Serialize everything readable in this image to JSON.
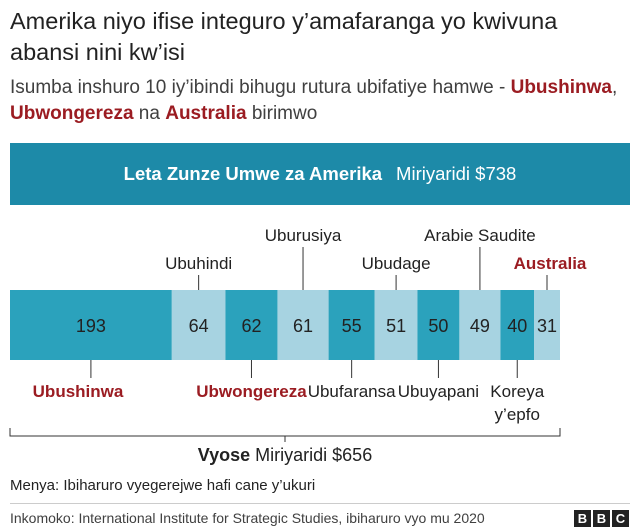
{
  "title": "Amerika niyo ifise integuro y’amafaranga yo kwivuna abansi nini kw’isi",
  "subtitle": {
    "part1": "Isumba inshuro 10 iy’ibindi bihugu rutura ubifatiye hamwe - ",
    "country1": "Ubushinwa",
    "part2": ", ",
    "country2": "Ubwongereza",
    "part3": " na ",
    "country3": "Australia",
    "part4": " birimwo"
  },
  "usa_bar": {
    "country": "Leta Zunze Umwe za Amerika",
    "value_label": "Miriyaridi $738",
    "color": "#1d8aa8"
  },
  "chart_data": {
    "type": "bar",
    "orientation": "stacked-horizontal",
    "unit": "Miriyaridi $",
    "categories": [
      "Ubushinwa",
      "Ubuhindi",
      "Ubwongereza",
      "Uburusiya",
      "Ubufaransa",
      "Ubudage",
      "Ubuyapani",
      "Arabie Saudite",
      "Koreya y’epfo",
      "Australia"
    ],
    "values": [
      193,
      64,
      62,
      61,
      55,
      51,
      50,
      49,
      40,
      31
    ],
    "label_positions": [
      "below",
      "above",
      "below",
      "above",
      "below",
      "above",
      "below",
      "above",
      "below",
      "above"
    ],
    "highlighted": [
      "Ubushinwa",
      "Ubwongereza",
      "Australia"
    ],
    "colors": {
      "dark": "#2ba2bc",
      "light": "#a7d3e1",
      "highlight_text": "#9b1c22"
    },
    "total": {
      "label": "Vyose",
      "value_label": "Miriyaridi $656"
    },
    "reference": {
      "label": "Leta Zunze Umwe za Amerika",
      "value": 738
    }
  },
  "note": "Menya: Ibiharuro vyegerejwe hafi cane y’ukuri",
  "source": "Inkomoko: International Institute for Strategic Studies, ibiharuro vyo mu 2020",
  "logo": [
    "B",
    "B",
    "C"
  ]
}
